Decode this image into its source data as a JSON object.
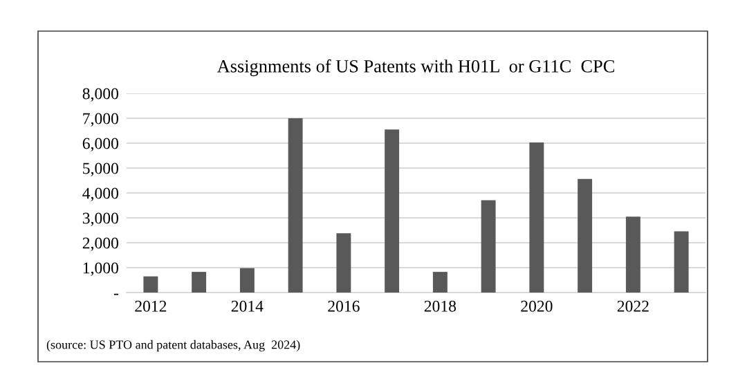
{
  "chart_data": {
    "type": "bar",
    "title": "Assignments of US Patents with H01L  or G11C  CPC",
    "categories": [
      "2012",
      null,
      "2014",
      null,
      "2016",
      null,
      "2018",
      null,
      "2020",
      null,
      "2022",
      null
    ],
    "values": [
      650,
      830,
      980,
      7000,
      2380,
      6550,
      830,
      3710,
      6030,
      4560,
      3050,
      2460
    ],
    "color": "#595959",
    "ylim": [
      0,
      8000
    ],
    "yticks": [
      {
        "value": 0,
        "label": "-"
      },
      {
        "value": 1000,
        "label": "1,000"
      },
      {
        "value": 2000,
        "label": "2,000"
      },
      {
        "value": 3000,
        "label": "3,000"
      },
      {
        "value": 4000,
        "label": "4,000"
      },
      {
        "value": 5000,
        "label": "5,000"
      },
      {
        "value": 6000,
        "label": "6,000"
      },
      {
        "value": 7000,
        "label": "7,000"
      },
      {
        "value": 8000,
        "label": "8,000"
      }
    ],
    "grid": "y",
    "annotations": [
      "(source: US PTO and patent databases, Aug  2024)"
    ]
  }
}
